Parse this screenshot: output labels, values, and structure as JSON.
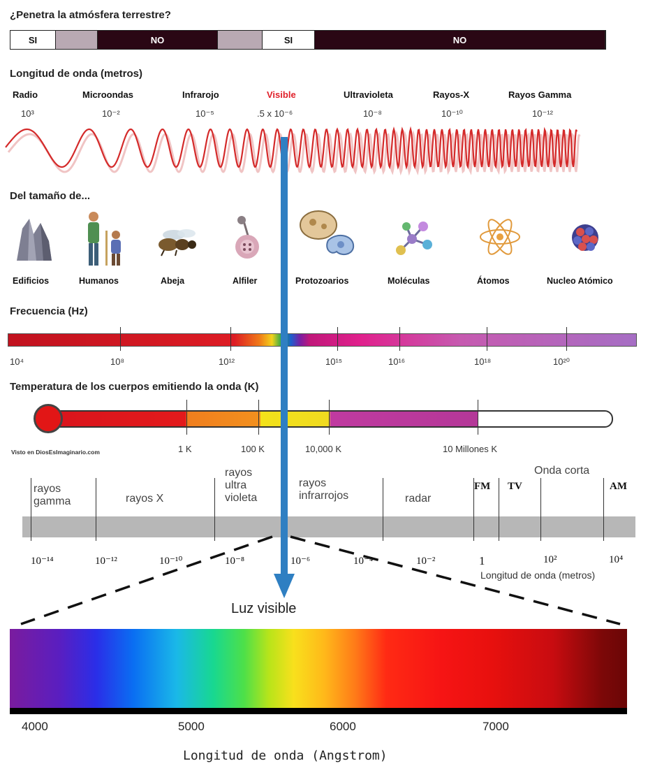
{
  "atmosphere": {
    "question": "¿Penetra la atmósfera terrestre?",
    "segments": [
      {
        "label": "SI",
        "color": "#ffffff",
        "text_color": "#111111"
      },
      {
        "label": "",
        "color": "#b9a9b3",
        "text_color": "#111111"
      },
      {
        "label": "NO",
        "color": "#2a0714",
        "text_color": "#ffffff"
      },
      {
        "label": "",
        "color": "#b9a9b3",
        "text_color": "#111111"
      },
      {
        "label": "SI",
        "color": "#ffffff",
        "text_color": "#111111"
      },
      {
        "label": "NO",
        "color": "#2a0714",
        "text_color": "#ffffff"
      }
    ]
  },
  "wavelength": {
    "title": "Longitud de onda (metros)",
    "bands": [
      {
        "name": "Radio",
        "value": "10³"
      },
      {
        "name": "Microondas",
        "value": "10⁻²"
      },
      {
        "name": "Infrarojo",
        "value": "10⁻⁵"
      },
      {
        "name": "Visible",
        "value": ".5 x 10⁻⁶"
      },
      {
        "name": "Ultravioleta",
        "value": "10⁻⁸"
      },
      {
        "name": "Rayos-X",
        "value": "10⁻¹⁰"
      },
      {
        "name": "Rayos Gamma",
        "value": "10⁻¹²"
      }
    ]
  },
  "sizes": {
    "title": "Del tamaño de...",
    "items": [
      {
        "label": "Edificios",
        "icon": "buildings-icon"
      },
      {
        "label": "Humanos",
        "icon": "humans-icon"
      },
      {
        "label": "Abeja",
        "icon": "bee-icon"
      },
      {
        "label": "Alfiler",
        "icon": "pin-icon"
      },
      {
        "label": "Protozoarios",
        "icon": "protozoa-icon"
      },
      {
        "label": "Moléculas",
        "icon": "molecule-icon"
      },
      {
        "label": "Átomos",
        "icon": "atom-icon"
      },
      {
        "label": "Nucleo Atómico",
        "icon": "nucleus-icon"
      }
    ]
  },
  "frequency": {
    "title": "Frecuencia (Hz)",
    "ticks": [
      "10⁴",
      "10⁸",
      "10¹²",
      "10¹⁵",
      "10¹⁶",
      "10¹⁸",
      "10²⁰"
    ]
  },
  "temperature": {
    "title": "Temperatura de los cuerpos emitiendo la onda (K)",
    "ticks": [
      "1 K",
      "100 K",
      "10,000 K",
      "10 Millones K"
    ],
    "source": "Visto en DiosEsImaginario.com"
  },
  "scale": {
    "regions": [
      "rayos gamma",
      "rayos X",
      "rayos ultra violeta",
      "rayos infrarrojos",
      "radar",
      "FM",
      "TV",
      "Onda corta",
      "AM"
    ],
    "ticks": [
      "10⁻¹⁴",
      "10⁻¹²",
      "10⁻¹⁰",
      "10⁻⁸",
      "10⁻⁶",
      "10⁻⁴",
      "10⁻²",
      "1",
      "10²",
      "10⁴"
    ],
    "axis_label": "Longitud de onda (metros)"
  },
  "visible": {
    "title": "Luz visible",
    "ticks": [
      "4000",
      "5000",
      "6000",
      "7000"
    ],
    "axis_label": "Longitud de onda (Angstrom)"
  },
  "colors": {
    "wave": "#d42a2a",
    "arrow": "#2f7fc2",
    "visible_label": "#e0202a"
  }
}
